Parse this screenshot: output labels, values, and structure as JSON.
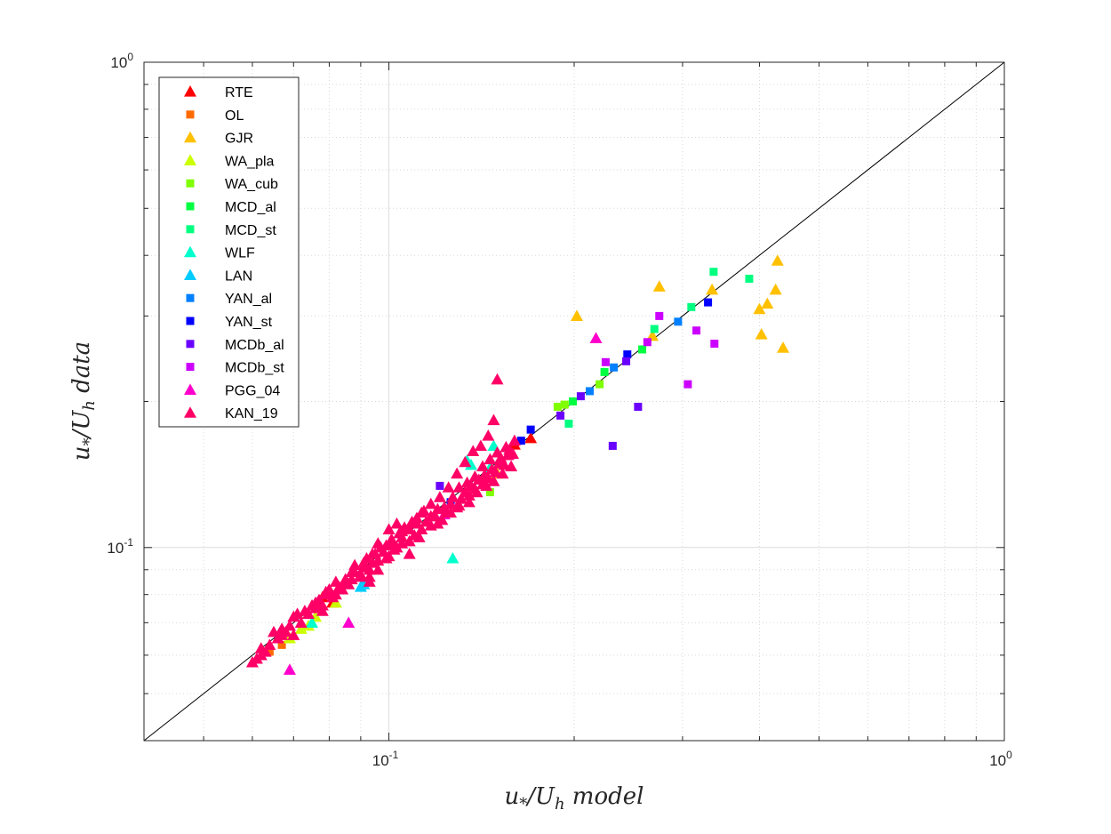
{
  "chart_data": {
    "type": "scatter",
    "xscale": "log",
    "yscale": "log",
    "xlim": [
      0.04,
      1.0
    ],
    "ylim": [
      0.04,
      1.0
    ],
    "xlabel_main": "u",
    "xlabel_sub1": "*",
    "xlabel_mid": "/U",
    "xlabel_sub2": "h",
    "xlabel_tail": " model",
    "ylabel_main": "u",
    "ylabel_sub1": "*",
    "ylabel_mid": "/U",
    "ylabel_sub2": "h",
    "ylabel_tail": " data",
    "x_ticks": [
      {
        "value": 0.1,
        "base": "10",
        "exp": "-1"
      },
      {
        "value": 1.0,
        "base": "10",
        "exp": "0"
      }
    ],
    "y_ticks": [
      {
        "value": 0.1,
        "base": "10",
        "exp": "-1"
      },
      {
        "value": 1.0,
        "base": "10",
        "exp": "0"
      }
    ],
    "grid": true,
    "reference_line": "y = x",
    "legend_position": "top-left",
    "series": [
      {
        "name": "RTE",
        "marker": "triangle",
        "color": "#ff0000",
        "points": [
          [
            0.081,
            0.077
          ],
          [
            0.078,
            0.079
          ],
          [
            0.16,
            0.163
          ],
          [
            0.17,
            0.168
          ]
        ]
      },
      {
        "name": "OL",
        "marker": "square",
        "color": "#ff6a00",
        "points": [
          [
            0.064,
            0.061
          ],
          [
            0.067,
            0.063
          ]
        ]
      },
      {
        "name": "GJR",
        "marker": "triangle",
        "color": "#ffc000",
        "points": [
          [
            0.202,
            0.3
          ],
          [
            0.275,
            0.345
          ],
          [
            0.335,
            0.34
          ],
          [
            0.268,
            0.273
          ],
          [
            0.4,
            0.31
          ],
          [
            0.412,
            0.318
          ],
          [
            0.425,
            0.34
          ],
          [
            0.428,
            0.39
          ],
          [
            0.403,
            0.275
          ],
          [
            0.437,
            0.258
          ],
          [
            0.15,
            0.142
          ]
        ]
      },
      {
        "name": "WA_pla",
        "marker": "triangle",
        "color": "#ccff00",
        "points": [
          [
            0.069,
            0.065
          ],
          [
            0.072,
            0.068
          ],
          [
            0.074,
            0.069
          ],
          [
            0.076,
            0.072
          ],
          [
            0.082,
            0.077
          ]
        ]
      },
      {
        "name": "WA_cub",
        "marker": "square",
        "color": "#80ff00",
        "points": [
          [
            0.146,
            0.13
          ],
          [
            0.188,
            0.195
          ],
          [
            0.193,
            0.197
          ],
          [
            0.22,
            0.217
          ]
        ]
      },
      {
        "name": "MCD_al",
        "marker": "square",
        "color": "#00ff40",
        "points": [
          [
            0.199,
            0.2
          ],
          [
            0.224,
            0.23
          ],
          [
            0.258,
            0.256
          ]
        ]
      },
      {
        "name": "MCD_st",
        "marker": "square",
        "color": "#00ff80",
        "points": [
          [
            0.196,
            0.18
          ],
          [
            0.337,
            0.37
          ],
          [
            0.385,
            0.358
          ],
          [
            0.31,
            0.313
          ],
          [
            0.27,
            0.282
          ]
        ]
      },
      {
        "name": "WLF",
        "marker": "triangle",
        "color": "#00ffcc",
        "points": [
          [
            0.134,
            0.151
          ],
          [
            0.136,
            0.148
          ],
          [
            0.146,
            0.146
          ],
          [
            0.127,
            0.095
          ],
          [
            0.148,
            0.162
          ],
          [
            0.075,
            0.07
          ]
        ]
      },
      {
        "name": "LAN",
        "marker": "triangle",
        "color": "#00ccff",
        "points": [
          [
            0.09,
            0.083
          ],
          [
            0.091,
            0.084
          ]
        ]
      },
      {
        "name": "YAN_al",
        "marker": "square",
        "color": "#0080ff",
        "points": [
          [
            0.212,
            0.21
          ],
          [
            0.232,
            0.235
          ],
          [
            0.295,
            0.292
          ]
        ]
      },
      {
        "name": "YAN_st",
        "marker": "square",
        "color": "#0000ff",
        "points": [
          [
            0.17,
            0.175
          ],
          [
            0.244,
            0.25
          ],
          [
            0.33,
            0.32
          ],
          [
            0.164,
            0.166
          ],
          [
            0.126,
            0.124
          ]
        ]
      },
      {
        "name": "MCDb_al",
        "marker": "square",
        "color": "#6a00ff",
        "points": [
          [
            0.19,
            0.187
          ],
          [
            0.231,
            0.162
          ],
          [
            0.254,
            0.195
          ],
          [
            0.243,
            0.242
          ],
          [
            0.205,
            0.205
          ],
          [
            0.121,
            0.134
          ]
        ]
      },
      {
        "name": "MCDb_st",
        "marker": "square",
        "color": "#cc00ff",
        "points": [
          [
            0.225,
            0.241
          ],
          [
            0.263,
            0.265
          ],
          [
            0.275,
            0.3
          ],
          [
            0.316,
            0.28
          ],
          [
            0.338,
            0.263
          ],
          [
            0.306,
            0.217
          ],
          [
            0.158,
            0.155
          ]
        ]
      },
      {
        "name": "PGG_04",
        "marker": "triangle",
        "color": "#ff00cc",
        "points": [
          [
            0.069,
            0.056
          ],
          [
            0.086,
            0.07
          ],
          [
            0.217,
            0.27
          ],
          [
            0.123,
            0.117
          ]
        ]
      },
      {
        "name": "KAN_19",
        "marker": "triangle",
        "color": "#ff0066",
        "points": [
          [
            0.06,
            0.058
          ],
          [
            0.061,
            0.059
          ],
          [
            0.062,
            0.06
          ],
          [
            0.063,
            0.061
          ],
          [
            0.066,
            0.065
          ],
          [
            0.067,
            0.068
          ],
          [
            0.068,
            0.067
          ],
          [
            0.07,
            0.066
          ],
          [
            0.072,
            0.07
          ],
          [
            0.074,
            0.073
          ],
          [
            0.076,
            0.075
          ],
          [
            0.077,
            0.078
          ],
          [
            0.078,
            0.076
          ],
          [
            0.079,
            0.08
          ],
          [
            0.08,
            0.082
          ],
          [
            0.082,
            0.08
          ],
          [
            0.083,
            0.083
          ],
          [
            0.085,
            0.086
          ],
          [
            0.086,
            0.084
          ],
          [
            0.087,
            0.089
          ],
          [
            0.088,
            0.092
          ],
          [
            0.09,
            0.088
          ],
          [
            0.091,
            0.091
          ],
          [
            0.092,
            0.095
          ],
          [
            0.093,
            0.087
          ],
          [
            0.094,
            0.093
          ],
          [
            0.095,
            0.097
          ],
          [
            0.096,
            0.09
          ],
          [
            0.098,
            0.098
          ],
          [
            0.099,
            0.101
          ],
          [
            0.1,
            0.096
          ],
          [
            0.101,
            0.104
          ],
          [
            0.103,
            0.1
          ],
          [
            0.104,
            0.107
          ],
          [
            0.105,
            0.102
          ],
          [
            0.106,
            0.11
          ],
          [
            0.108,
            0.103
          ],
          [
            0.11,
            0.106
          ],
          [
            0.111,
            0.112
          ],
          [
            0.113,
            0.109
          ],
          [
            0.115,
            0.113
          ],
          [
            0.117,
            0.111
          ],
          [
            0.119,
            0.116
          ],
          [
            0.12,
            0.12
          ],
          [
            0.122,
            0.114
          ],
          [
            0.124,
            0.118
          ],
          [
            0.126,
            0.123
          ],
          [
            0.127,
            0.127
          ],
          [
            0.129,
            0.121
          ],
          [
            0.131,
            0.126
          ],
          [
            0.133,
            0.13
          ],
          [
            0.135,
            0.128
          ],
          [
            0.136,
            0.134
          ],
          [
            0.138,
            0.132
          ],
          [
            0.14,
            0.138
          ],
          [
            0.142,
            0.135
          ],
          [
            0.143,
            0.141
          ],
          [
            0.145,
            0.139
          ],
          [
            0.147,
            0.145
          ],
          [
            0.149,
            0.143
          ],
          [
            0.151,
            0.149
          ],
          [
            0.152,
            0.153
          ],
          [
            0.154,
            0.148
          ],
          [
            0.156,
            0.155
          ],
          [
            0.157,
            0.159
          ],
          [
            0.159,
            0.156
          ],
          [
            0.15,
            0.222
          ],
          [
            0.148,
            0.183
          ],
          [
            0.145,
            0.17
          ],
          [
            0.141,
            0.162
          ],
          [
            0.137,
            0.158
          ],
          [
            0.133,
            0.15
          ],
          [
            0.129,
            0.142
          ],
          [
            0.125,
            0.133
          ],
          [
            0.121,
            0.127
          ],
          [
            0.117,
            0.123
          ],
          [
            0.113,
            0.118
          ],
          [
            0.109,
            0.113
          ],
          [
            0.105,
            0.108
          ],
          [
            0.101,
            0.102
          ],
          [
            0.097,
            0.1
          ],
          [
            0.094,
            0.097
          ],
          [
            0.091,
            0.093
          ],
          [
            0.088,
            0.089
          ],
          [
            0.085,
            0.085
          ],
          [
            0.082,
            0.085
          ],
          [
            0.079,
            0.081
          ],
          [
            0.076,
            0.077
          ],
          [
            0.073,
            0.074
          ],
          [
            0.07,
            0.072
          ],
          [
            0.067,
            0.066
          ],
          [
            0.064,
            0.063
          ],
          [
            0.062,
            0.062
          ],
          [
            0.065,
            0.067
          ],
          [
            0.069,
            0.069
          ],
          [
            0.071,
            0.073
          ],
          [
            0.075,
            0.076
          ],
          [
            0.078,
            0.074
          ],
          [
            0.081,
            0.079
          ],
          [
            0.084,
            0.082
          ],
          [
            0.087,
            0.086
          ],
          [
            0.09,
            0.087
          ],
          [
            0.093,
            0.09
          ],
          [
            0.096,
            0.094
          ],
          [
            0.099,
            0.095
          ],
          [
            0.102,
            0.099
          ],
          [
            0.105,
            0.105
          ],
          [
            0.108,
            0.109
          ],
          [
            0.111,
            0.115
          ],
          [
            0.114,
            0.119
          ],
          [
            0.117,
            0.116
          ],
          [
            0.12,
            0.112
          ],
          [
            0.123,
            0.121
          ],
          [
            0.126,
            0.118
          ],
          [
            0.13,
            0.133
          ],
          [
            0.134,
            0.136
          ],
          [
            0.138,
            0.14
          ],
          [
            0.142,
            0.147
          ],
          [
            0.146,
            0.152
          ],
          [
            0.15,
            0.157
          ],
          [
            0.155,
            0.161
          ],
          [
            0.16,
            0.166
          ],
          [
            0.13,
            0.122
          ],
          [
            0.135,
            0.124
          ],
          [
            0.139,
            0.13
          ],
          [
            0.144,
            0.134
          ],
          [
            0.148,
            0.137
          ],
          [
            0.153,
            0.142
          ],
          [
            0.158,
            0.147
          ],
          [
            0.096,
            0.102
          ],
          [
            0.1,
            0.109
          ],
          [
            0.103,
            0.112
          ],
          [
            0.108,
            0.097
          ],
          [
            0.112,
            0.105
          ],
          [
            0.093,
            0.085
          ]
        ]
      }
    ]
  }
}
